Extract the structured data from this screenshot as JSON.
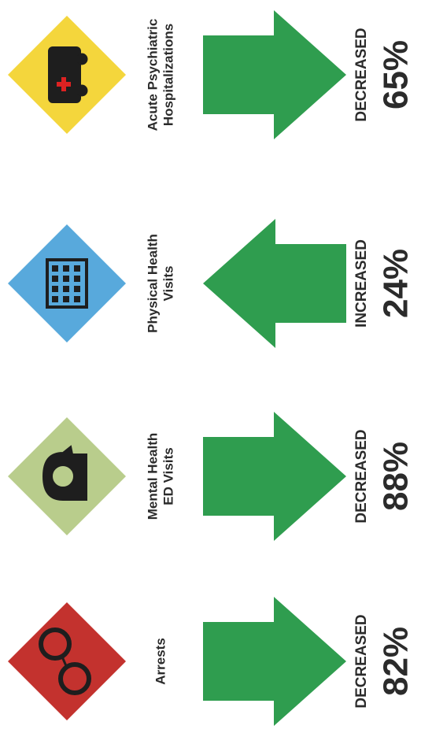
{
  "items": [
    {
      "label_lines": [
        "Arrests"
      ],
      "status": "DECREASED",
      "percent": "82%",
      "direction": "down",
      "color": "#c3322e"
    },
    {
      "label_lines": [
        "Mental Health",
        "ED Visits"
      ],
      "status": "DECREASED",
      "percent": "88%",
      "direction": "down",
      "color": "#b9cd8c"
    },
    {
      "label_lines": [
        "Physical Health",
        "Visits"
      ],
      "status": "INCREASED",
      "percent": "24%",
      "direction": "up",
      "color": "#58a9dc"
    },
    {
      "label_lines": [
        "Acute Psychiatric",
        "Hospitalizations"
      ],
      "status": "DECREASED",
      "percent": "65%",
      "direction": "down",
      "color": "#f4d63c"
    }
  ]
}
